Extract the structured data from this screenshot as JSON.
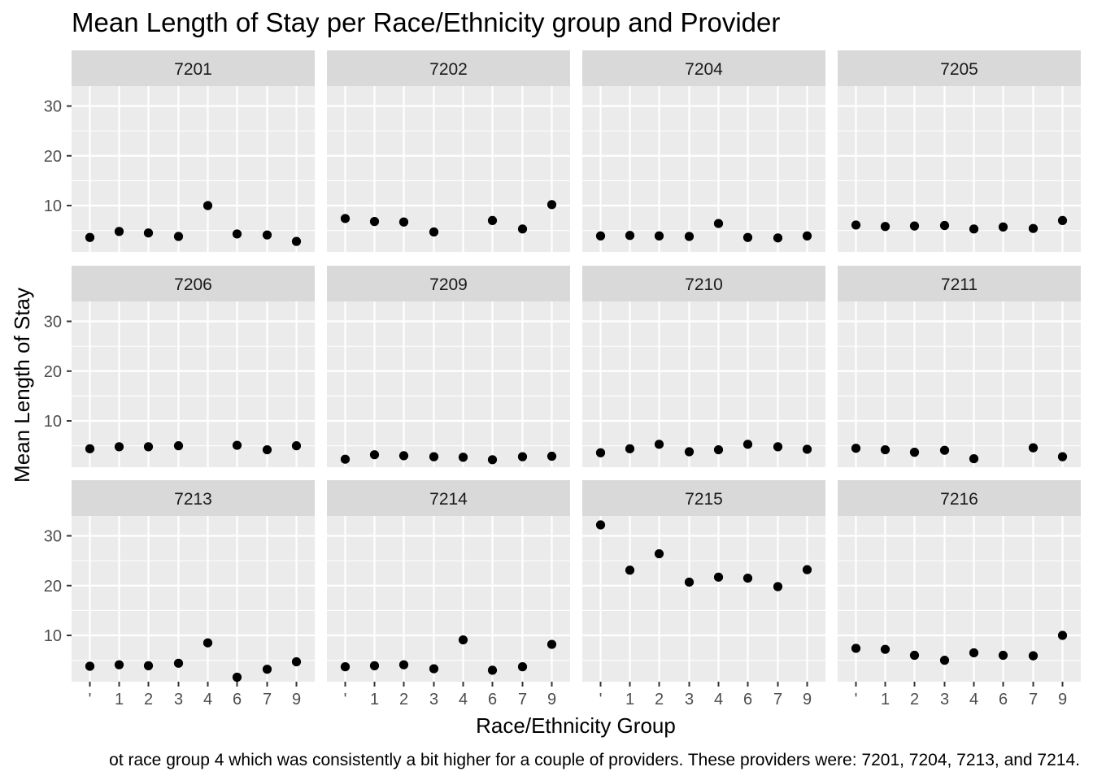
{
  "chart_data": {
    "type": "scatter",
    "title": "Mean Length of Stay per Race/Ethnicity group and Provider",
    "xlabel": "Race/Ethnicity Group",
    "ylabel": "Mean Length of Stay",
    "caption": "ot race group 4 which was consistently a bit higher for a couple of providers. These providers were: 7201, 7204, 7213, and 7214.",
    "x_categories": [
      "'",
      "1",
      "2",
      "3",
      "4",
      "6",
      "7",
      "9"
    ],
    "y_ticks": [
      10,
      20,
      30
    ],
    "ylim": [
      0.7,
      34
    ],
    "grid": true,
    "facet_layout": "3 rows x 4 columns",
    "colors": {
      "panel": "#ebebeb",
      "strip": "#d9d9d9",
      "grid": "#ffffff",
      "point": "#000000",
      "text": "#4d4d4d"
    },
    "panels": [
      {
        "label": "7201",
        "points": [
          [
            "'",
            3.6
          ],
          [
            "1",
            4.8
          ],
          [
            "2",
            4.5
          ],
          [
            "3",
            3.8
          ],
          [
            "4",
            10.0
          ],
          [
            "6",
            4.3
          ],
          [
            "7",
            4.1
          ],
          [
            "9",
            2.8
          ]
        ]
      },
      {
        "label": "7202",
        "points": [
          [
            "'",
            7.4
          ],
          [
            "1",
            6.8
          ],
          [
            "2",
            6.7
          ],
          [
            "3",
            4.7
          ],
          [
            "6",
            7.0
          ],
          [
            "7",
            5.3
          ],
          [
            "9",
            10.2
          ]
        ]
      },
      {
        "label": "7204",
        "points": [
          [
            "'",
            3.9
          ],
          [
            "1",
            4.0
          ],
          [
            "2",
            3.9
          ],
          [
            "3",
            3.8
          ],
          [
            "4",
            6.4
          ],
          [
            "6",
            3.6
          ],
          [
            "7",
            3.5
          ],
          [
            "9",
            3.9
          ]
        ]
      },
      {
        "label": "7205",
        "points": [
          [
            "'",
            6.1
          ],
          [
            "1",
            5.8
          ],
          [
            "2",
            5.9
          ],
          [
            "3",
            6.0
          ],
          [
            "4",
            5.3
          ],
          [
            "6",
            5.7
          ],
          [
            "7",
            5.4
          ],
          [
            "9",
            7.0
          ]
        ]
      },
      {
        "label": "7206",
        "points": [
          [
            "'",
            4.4
          ],
          [
            "1",
            4.8
          ],
          [
            "2",
            4.8
          ],
          [
            "3",
            5.0
          ],
          [
            "6",
            5.1
          ],
          [
            "7",
            4.2
          ],
          [
            "9",
            5.0
          ]
        ]
      },
      {
        "label": "7209",
        "points": [
          [
            "'",
            2.3
          ],
          [
            "1",
            3.2
          ],
          [
            "2",
            3.0
          ],
          [
            "3",
            2.8
          ],
          [
            "4",
            2.7
          ],
          [
            "6",
            2.2
          ],
          [
            "7",
            2.8
          ],
          [
            "9",
            2.9
          ]
        ]
      },
      {
        "label": "7210",
        "points": [
          [
            "'",
            3.6
          ],
          [
            "1",
            4.4
          ],
          [
            "2",
            5.3
          ],
          [
            "3",
            3.8
          ],
          [
            "4",
            4.2
          ],
          [
            "6",
            5.3
          ],
          [
            "7",
            4.8
          ],
          [
            "9",
            4.3
          ]
        ]
      },
      {
        "label": "7211",
        "points": [
          [
            "'",
            4.5
          ],
          [
            "1",
            4.2
          ],
          [
            "2",
            3.7
          ],
          [
            "3",
            4.1
          ],
          [
            "4",
            2.4
          ],
          [
            "7",
            4.6
          ],
          [
            "9",
            2.8
          ]
        ]
      },
      {
        "label": "7213",
        "points": [
          [
            "'",
            3.8
          ],
          [
            "1",
            4.1
          ],
          [
            "2",
            3.9
          ],
          [
            "3",
            4.4
          ],
          [
            "4",
            8.5
          ],
          [
            "6",
            1.6
          ],
          [
            "7",
            3.2
          ],
          [
            "9",
            4.7
          ]
        ]
      },
      {
        "label": "7214",
        "points": [
          [
            "'",
            3.7
          ],
          [
            "1",
            3.9
          ],
          [
            "2",
            4.1
          ],
          [
            "3",
            3.3
          ],
          [
            "4",
            9.1
          ],
          [
            "6",
            3.0
          ],
          [
            "7",
            3.7
          ],
          [
            "9",
            8.2
          ]
        ]
      },
      {
        "label": "7215",
        "points": [
          [
            "'",
            32.2
          ],
          [
            "1",
            23.1
          ],
          [
            "2",
            26.4
          ],
          [
            "3",
            20.7
          ],
          [
            "4",
            21.7
          ],
          [
            "6",
            21.5
          ],
          [
            "7",
            19.8
          ],
          [
            "9",
            23.2
          ]
        ]
      },
      {
        "label": "7216",
        "points": [
          [
            "'",
            7.4
          ],
          [
            "1",
            7.2
          ],
          [
            "2",
            6.0
          ],
          [
            "3",
            5.0
          ],
          [
            "4",
            6.5
          ],
          [
            "6",
            6.0
          ],
          [
            "7",
            5.9
          ],
          [
            "9",
            10.0
          ]
        ]
      }
    ]
  }
}
